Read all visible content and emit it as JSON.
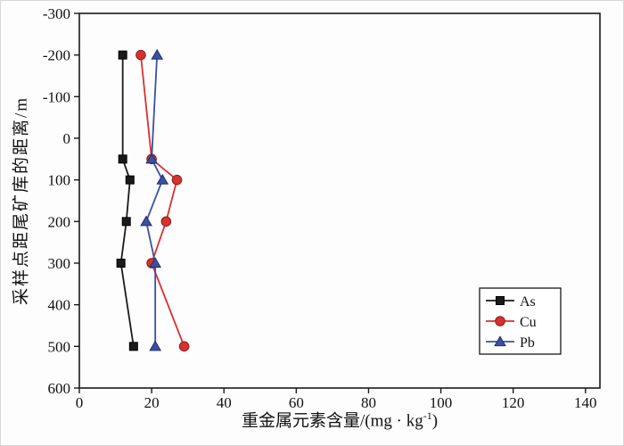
{
  "chart_data": {
    "type": "line",
    "title": "",
    "xlabel": "重金属元素含量/(mg·kg⁻¹)",
    "xlabel_parts": {
      "pre": "重金属元素含量/(mg · kg",
      "sup": "-1",
      "post": ")"
    },
    "ylabel": "采样点距尾矿库的距离/m",
    "xlim": [
      0,
      144
    ],
    "ylim": [
      -300,
      600
    ],
    "y_inverted": true,
    "grid": false,
    "x_ticks": [
      0,
      20,
      40,
      60,
      80,
      100,
      120,
      140
    ],
    "y_ticks": [
      -300,
      -200,
      -100,
      0,
      100,
      200,
      300,
      400,
      500,
      600
    ],
    "distances": [
      -200,
      50,
      100,
      200,
      300,
      500
    ],
    "series": [
      {
        "name": "As",
        "marker": "square",
        "color": "#1a1a1a",
        "edge_color": "#000000",
        "values": [
          12,
          12,
          14,
          13,
          11.5,
          15
        ]
      },
      {
        "name": "Cu",
        "marker": "circle",
        "color": "#d93030",
        "edge_color": "#8f1d1d",
        "values": [
          17,
          20,
          27,
          24,
          20,
          29
        ]
      },
      {
        "name": "Pb",
        "marker": "triangle",
        "color": "#3c50a0",
        "edge_color": "#1f2f6e",
        "values": [
          21.5,
          20,
          23,
          18.5,
          21,
          21
        ]
      }
    ],
    "legend": [
      "As",
      "Cu",
      "Pb"
    ],
    "legend_position": "bottom-right",
    "frame_color": "#1a1a1a",
    "background_color": "#fdfdfd"
  }
}
